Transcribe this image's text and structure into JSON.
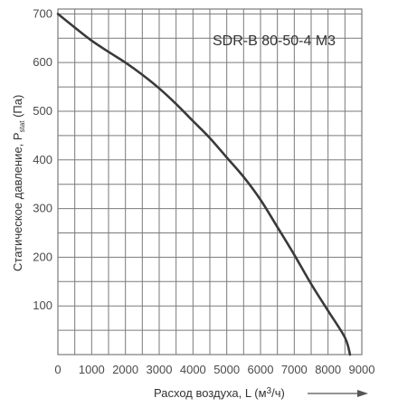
{
  "chart_data": {
    "type": "line",
    "title": "SDR-B 80-50-4 M3",
    "xlabel": {
      "main": "Расход воздуха, L (м",
      "sup": "3",
      "tail": "/ч)"
    },
    "ylabel": {
      "main": "Статическое давление, P",
      "sub": "stat",
      "tail": " (Па)"
    },
    "xlim": [
      0,
      9000
    ],
    "ylim": [
      0,
      710
    ],
    "x_ticks": [
      0,
      1000,
      2000,
      3000,
      4000,
      5000,
      6000,
      7000,
      8000,
      9000
    ],
    "y_ticks": [
      100,
      200,
      300,
      400,
      500,
      600,
      700
    ],
    "x_tick_labels": [
      "0",
      "1000",
      "2000",
      "3000",
      "4000",
      "5000",
      "6000",
      "7000",
      "8000",
      "9000"
    ],
    "y_tick_labels": [
      "100",
      "200",
      "300",
      "400",
      "500",
      "600",
      "700"
    ],
    "grid": true,
    "series": [
      {
        "x": [
          0,
          500,
          1000,
          1500,
          2000,
          2500,
          3000,
          3500,
          4000,
          4500,
          5000,
          5500,
          6000,
          6500,
          7000,
          7500,
          8000,
          8500,
          8650
        ],
        "y": [
          700,
          672,
          645,
          622,
          600,
          575,
          547,
          515,
          480,
          445,
          405,
          365,
          318,
          262,
          205,
          145,
          90,
          35,
          0
        ]
      }
    ]
  },
  "colors": {
    "grid": "#7a7a7a",
    "curve": "#3a3a3a",
    "text": "#4a4a4a"
  }
}
